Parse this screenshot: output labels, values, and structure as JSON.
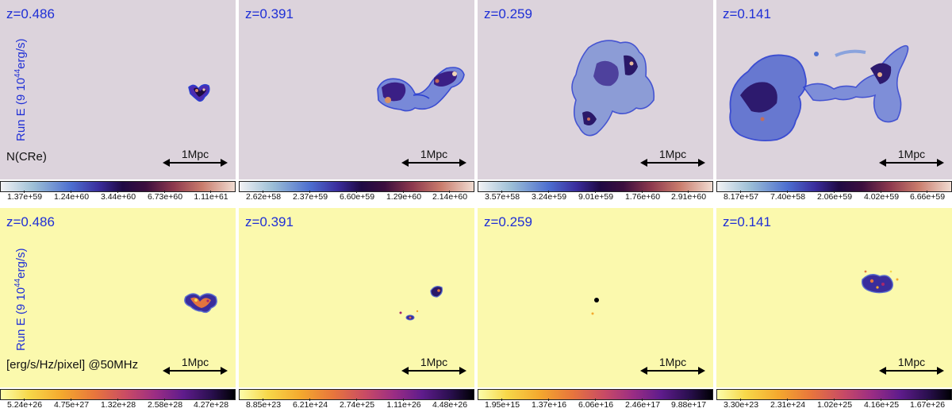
{
  "colors": {
    "top_background": "#dcd3dc",
    "bottom_background": "#fbf9ad",
    "label_blue": "#1f2fd6"
  },
  "rows": [
    {
      "row_label": {
        "prefix": "Run E (9 10",
        "exponent": "44",
        "suffix": "erg/s)"
      },
      "quantity_label": "N(CRe)",
      "colormap": "blue-purple-beige",
      "panels": [
        {
          "z": "z=0.486",
          "scale": "1Mpc",
          "ticks": [
            "1.37e+59",
            "1.24e+60",
            "3.44e+60",
            "6.73e+60",
            "1.11e+61"
          ]
        },
        {
          "z": "z=0.391",
          "scale": "1Mpc",
          "ticks": [
            "2.62e+58",
            "2.37e+59",
            "6.60e+59",
            "1.29e+60",
            "2.14e+60"
          ]
        },
        {
          "z": "z=0.259",
          "scale": "1Mpc",
          "ticks": [
            "3.57e+58",
            "3.24e+59",
            "9.01e+59",
            "1.76e+60",
            "2.91e+60"
          ]
        },
        {
          "z": "z=0.141",
          "scale": "1Mpc",
          "ticks": [
            "8.17e+57",
            "7.40e+58",
            "2.06e+59",
            "4.02e+59",
            "6.66e+59"
          ]
        }
      ]
    },
    {
      "row_label": {
        "prefix": "Run E (9 10",
        "exponent": "44",
        "suffix": "erg/s)"
      },
      "quantity_label": "[erg/s/Hz/pixel] @50MHz",
      "colormap": "inferno",
      "panels": [
        {
          "z": "z=0.486",
          "scale": "1Mpc",
          "ticks": [
            "5.24e+26",
            "4.75e+27",
            "1.32e+28",
            "2.58e+28",
            "4.27e+28"
          ]
        },
        {
          "z": "z=0.391",
          "scale": "1Mpc",
          "ticks": [
            "8.85e+23",
            "6.21e+24",
            "2.74e+25",
            "1.11e+26",
            "4.48e+26"
          ]
        },
        {
          "z": "z=0.259",
          "scale": "1Mpc",
          "ticks": [
            "1.95e+15",
            "1.37e+16",
            "6.06e+16",
            "2.46e+17",
            "9.88e+17"
          ]
        },
        {
          "z": "z=0.141",
          "scale": "1Mpc",
          "ticks": [
            "3.30e+23",
            "2.31e+24",
            "1.02e+25",
            "4.16e+25",
            "1.67e+26"
          ]
        }
      ]
    }
  ]
}
